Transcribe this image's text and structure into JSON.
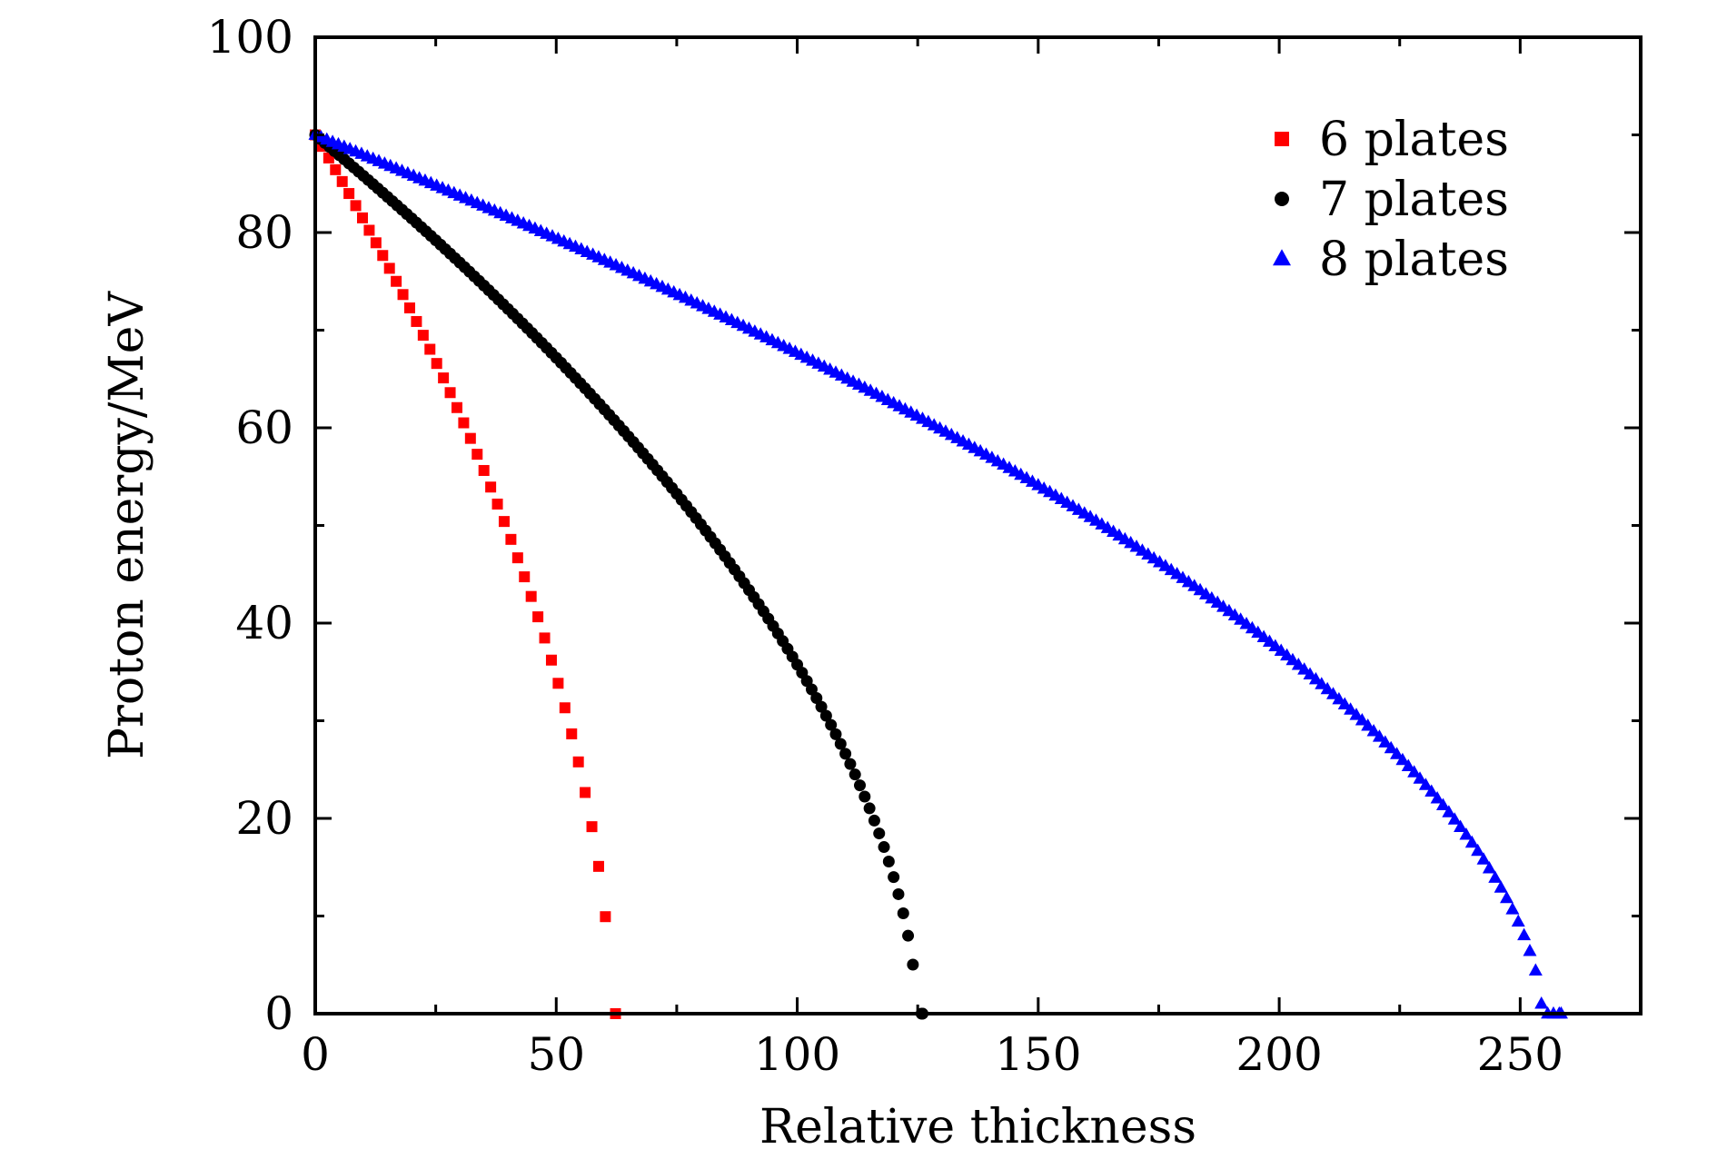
{
  "chart_data": {
    "type": "scatter",
    "title": "",
    "xlabel": "Relative thickness",
    "ylabel": "Proton energy/MeV",
    "xlim": [
      0,
      275
    ],
    "ylim": [
      0,
      100
    ],
    "xticks": [
      0,
      50,
      100,
      150,
      200,
      250
    ],
    "yticks": [
      0,
      20,
      40,
      60,
      80,
      100
    ],
    "xtick_labels": [
      "0",
      "50",
      "100",
      "150",
      "200",
      "250"
    ],
    "ytick_labels": [
      "0",
      "20",
      "40",
      "60",
      "80",
      "100"
    ],
    "grid": false,
    "legend_position": "top-right",
    "series": [
      {
        "name": "6 plates",
        "marker": "square",
        "color": "#ff0000",
        "initial_energy": 90,
        "range": 61.5,
        "end_x": 62.3,
        "step": 1.4
      },
      {
        "name": "7 plates",
        "marker": "circle",
        "color": "#000000",
        "initial_energy": 90,
        "range": 124.8,
        "end_x": 126.0,
        "step": 1.0
      },
      {
        "name": "8 plates",
        "marker": "triangle",
        "color": "#0000ff",
        "initial_energy": 90,
        "range": 254.5,
        "end_x": 258.5,
        "step": 1.2
      }
    ]
  }
}
